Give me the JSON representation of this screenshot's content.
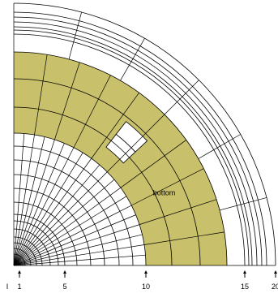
{
  "colors": {
    "shaded": "#c8c06a",
    "lines": "#000000",
    "background": "#ffffff"
  },
  "region_label": "bottom",
  "axis": {
    "leading_mark": "I",
    "ticks": [
      {
        "label": "1",
        "value": 1
      },
      {
        "label": "5",
        "value": 5
      },
      {
        "label": "10",
        "value": 10
      },
      {
        "label": "15",
        "value": 15
      },
      {
        "label": "20",
        "value": 20
      }
    ]
  },
  "chart_data": {
    "type": "polar-grid",
    "radial_rings": [
      1,
      2,
      3,
      4,
      5,
      6,
      7,
      8,
      9,
      10,
      11,
      12,
      13,
      14,
      15,
      16,
      17,
      18,
      19,
      20
    ],
    "shaded_band": {
      "from": 10,
      "to": 14.5
    },
    "unshaded_cells": 2,
    "region_label": "bottom"
  }
}
